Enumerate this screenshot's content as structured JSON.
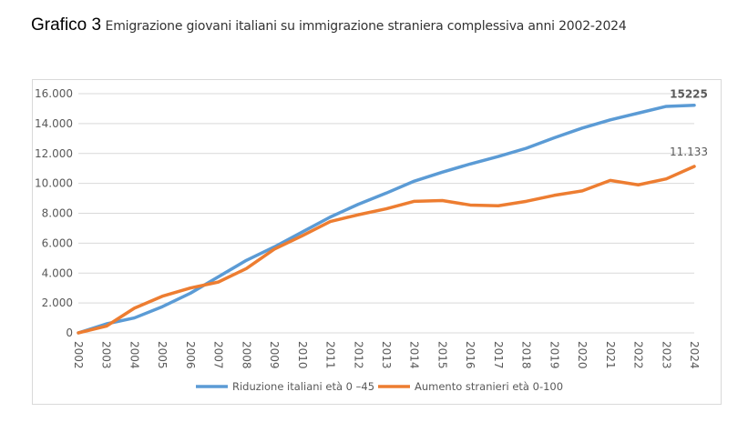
{
  "title": {
    "lead": "Grafico 3",
    "subtitle": "Emigrazione giovani italiani su immigrazione straniera complessiva anni 2002-2024"
  },
  "chart_data": {
    "type": "line",
    "title": "",
    "xlabel": "",
    "ylabel": "",
    "ylim": [
      0,
      16000
    ],
    "yticks": [
      "0",
      "2.000",
      "4.000",
      "6.000",
      "8.000",
      "10.000",
      "12.000",
      "14.000",
      "16.000"
    ],
    "ytick_values": [
      0,
      2000,
      4000,
      6000,
      8000,
      10000,
      12000,
      14000,
      16000
    ],
    "grid": true,
    "legend_position": "bottom",
    "x": [
      "2002",
      "2003",
      "2004",
      "2005",
      "2006",
      "2007",
      "2008",
      "2009",
      "2010",
      "2011",
      "2012",
      "2013",
      "2014",
      "2015",
      "2016",
      "2017",
      "2018",
      "2019",
      "2020",
      "2021",
      "2022",
      "2023",
      "2024"
    ],
    "series": [
      {
        "name": "Riduzione italiani età 0 –45",
        "color": "#5b9bd5",
        "values": [
          0,
          600,
          1000,
          1750,
          2650,
          3750,
          4850,
          5750,
          6750,
          7750,
          8600,
          9350,
          10150,
          10750,
          11300,
          11800,
          12350,
          13050,
          13700,
          14250,
          14700,
          15150,
          15225
        ],
        "end_label": "15225"
      },
      {
        "name": "Aumento stranieri età 0-100",
        "color": "#ed7d31",
        "values": [
          0,
          450,
          1650,
          2450,
          3000,
          3400,
          4300,
          5600,
          6500,
          7450,
          7900,
          8300,
          8800,
          8850,
          8550,
          8500,
          8800,
          9200,
          9500,
          10200,
          9900,
          10300,
          11133
        ],
        "end_label": "11.133"
      }
    ]
  }
}
